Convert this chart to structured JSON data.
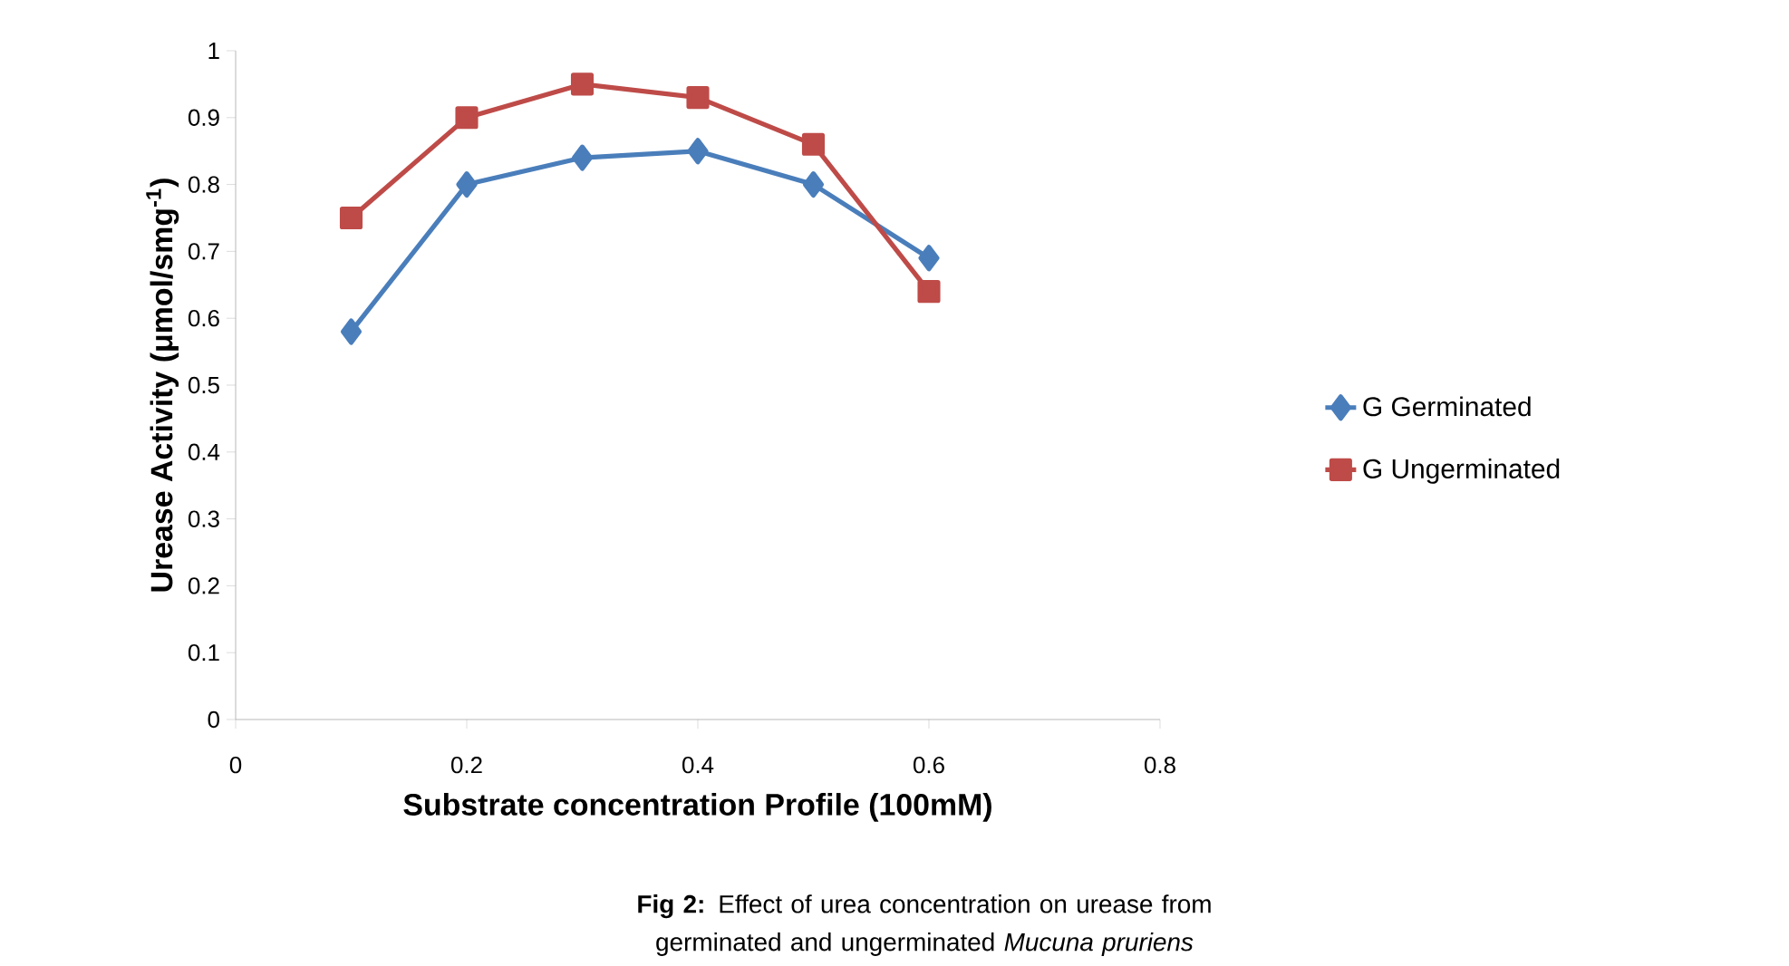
{
  "chart_data": {
    "type": "line",
    "xlabel": "Substrate concentration Profile (100mM)",
    "ylabel": "Urease Activity (μmol/smg$^{-1}$)",
    "annotations": [
      "**Fig 2:** Effect of urea concentration on urease from germinated and ungerminated *Mucuna pruriens*"
    ],
    "x": [
      0.1,
      0.2,
      0.3,
      0.4,
      0.5,
      0.6
    ],
    "series": [
      {
        "name": "G Germinated",
        "color": "#4a7ebb",
        "marker": "diamond",
        "values": [
          0.58,
          0.8,
          0.84,
          0.85,
          0.8,
          0.69
        ]
      },
      {
        "name": "G Ungerminated",
        "color": "#be4b48",
        "marker": "square",
        "values": [
          0.75,
          0.9,
          0.95,
          0.93,
          0.86,
          0.64
        ]
      }
    ],
    "xlim": [
      0,
      0.8
    ],
    "xticks": [
      0,
      0.2,
      0.4,
      0.6,
      0.8
    ],
    "ylim": [
      0,
      1
    ],
    "yticks": [
      0,
      0.1,
      0.2,
      0.3,
      0.4,
      0.5,
      0.6,
      0.7,
      0.8,
      0.9,
      1
    ],
    "grid": false,
    "legend": "right",
    "line_style": "solid"
  }
}
